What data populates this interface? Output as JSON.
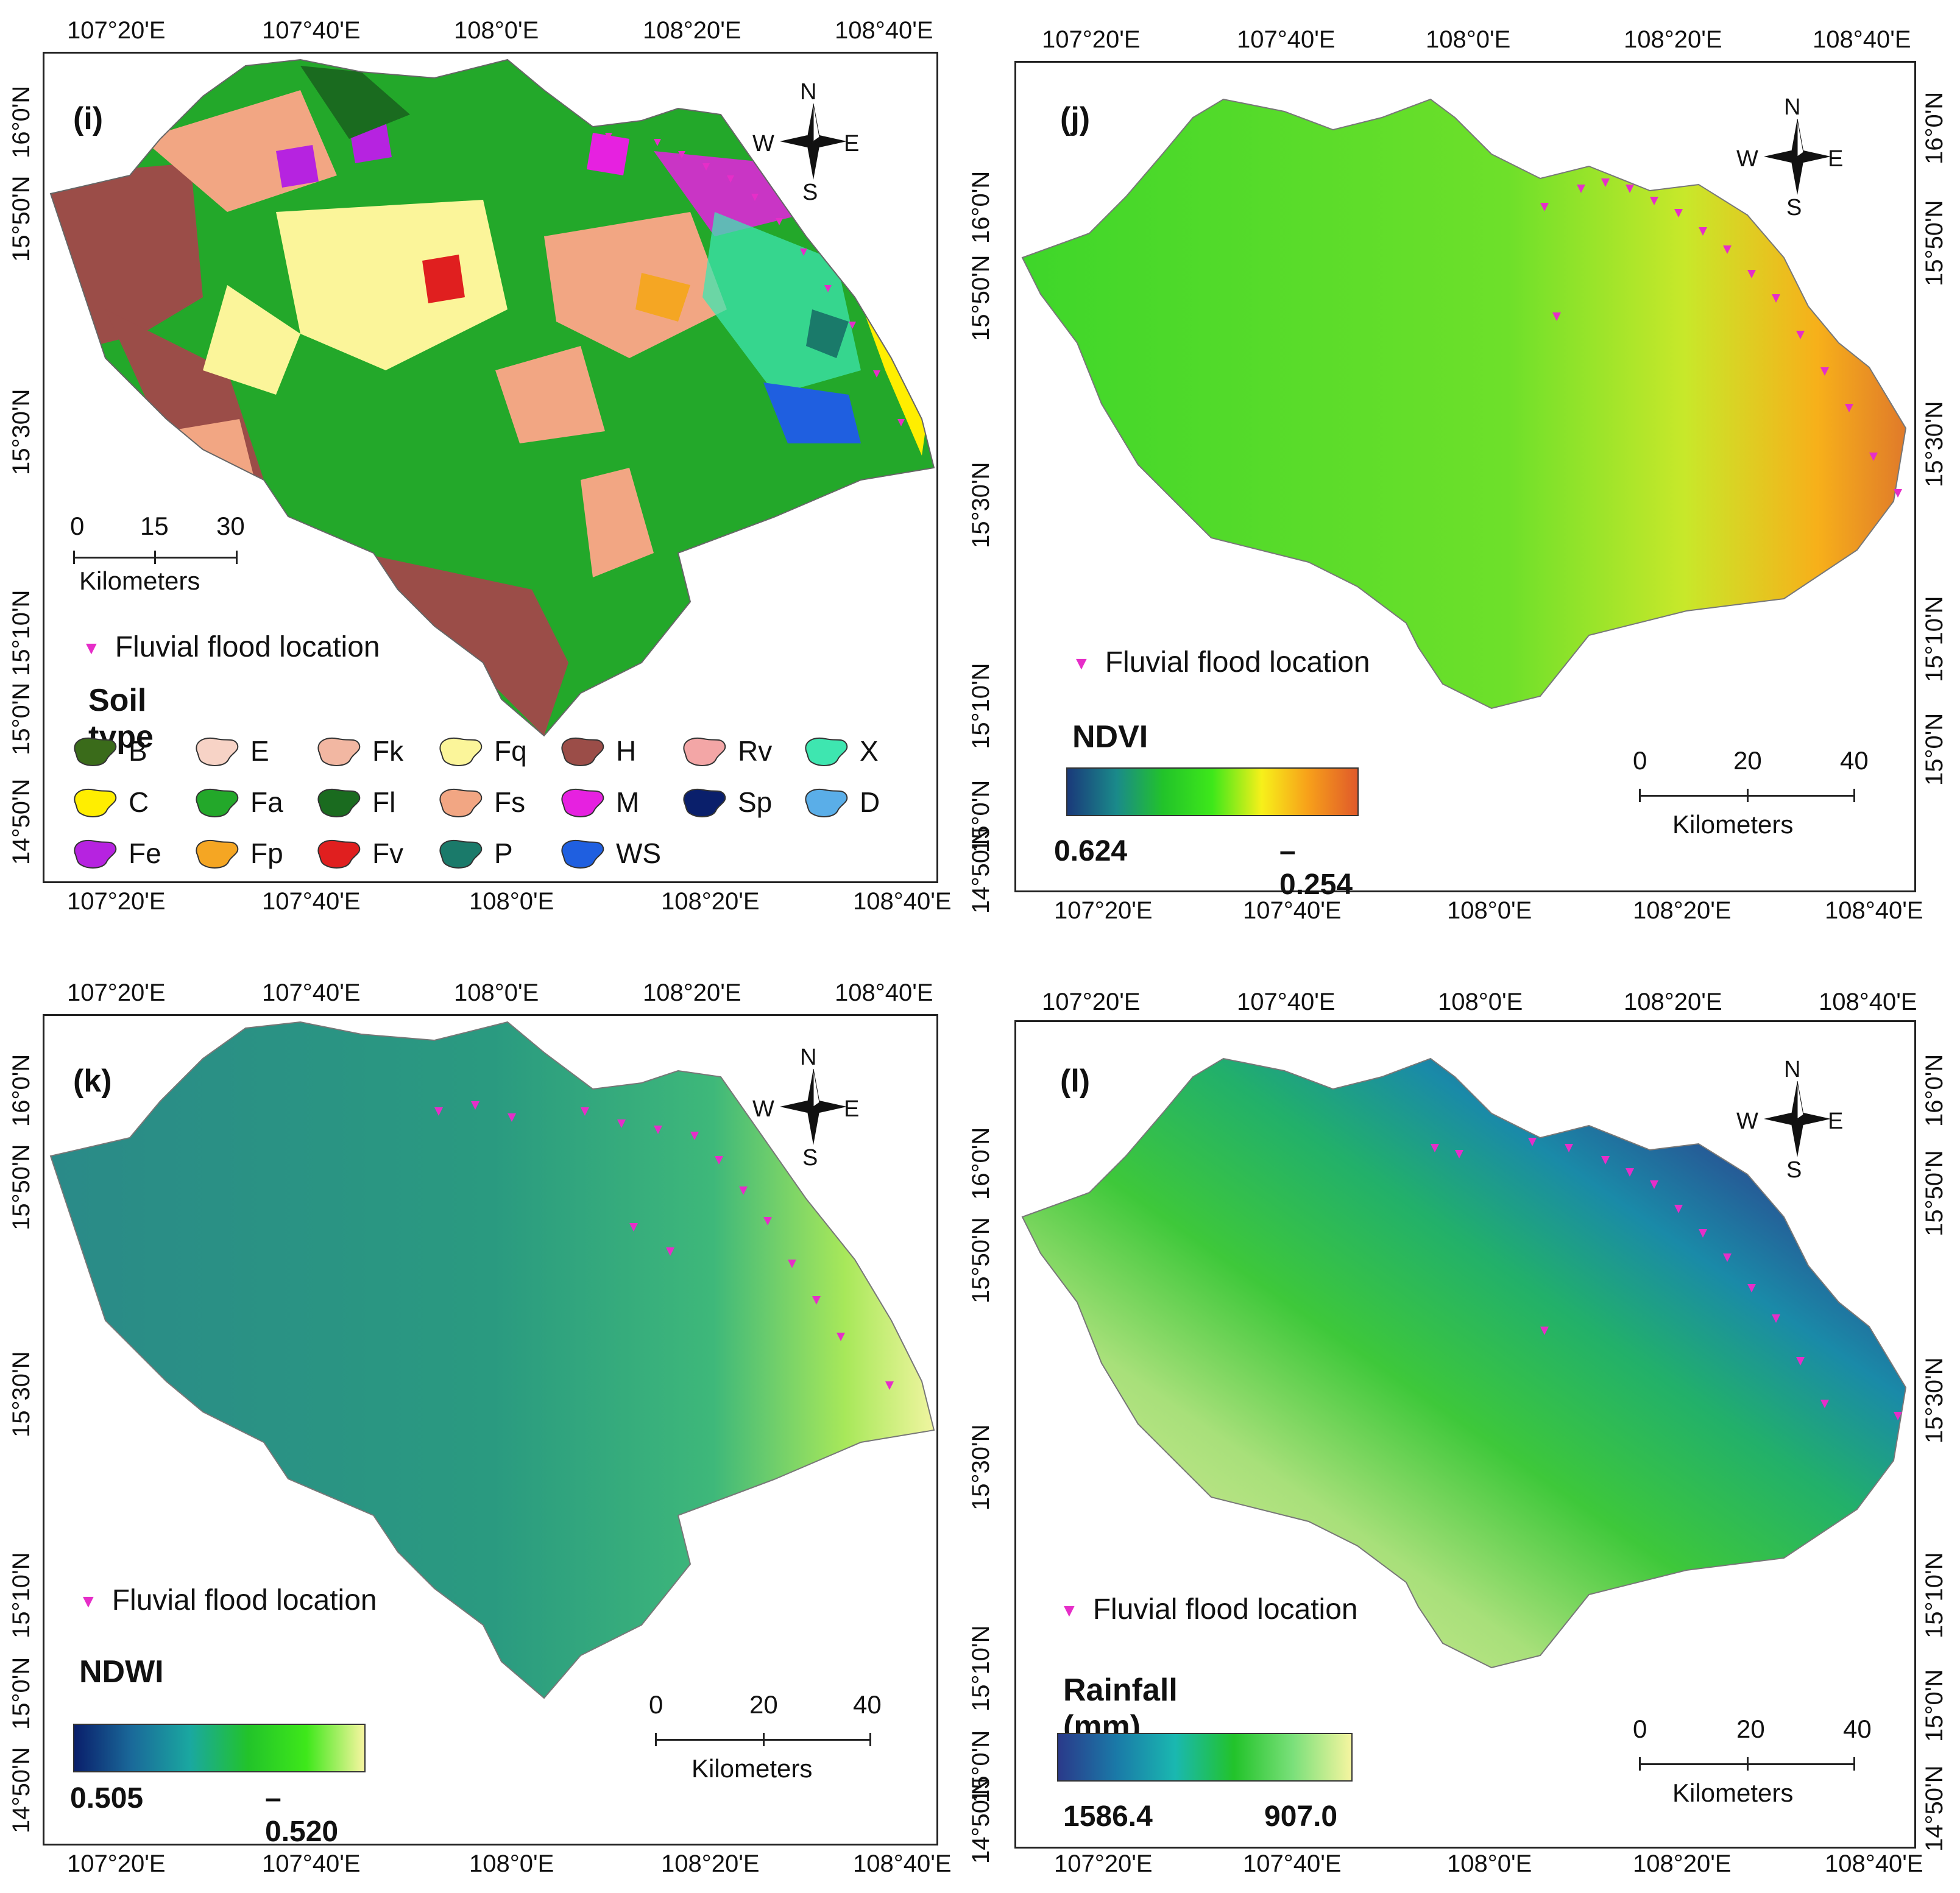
{
  "compass": {
    "n": "N",
    "s": "S",
    "e": "E",
    "w": "W"
  },
  "flood_legend": "Fluvial flood location",
  "scalebar_unit": "Kilometers",
  "panels": {
    "i": {
      "label": "(i)",
      "lon_ticks": [
        "107°20'E",
        "107°40'E",
        "108°0'E",
        "108°20'E",
        "108°40'E"
      ],
      "lat_ticks_left": [
        "16°0'N",
        "15°50'N",
        "15°30'N",
        "15°10'N",
        "15°0'N",
        "14°50'N"
      ],
      "lat_ticks_right": [],
      "scalebar": [
        "0",
        "15",
        "30"
      ],
      "legend_title": "Soil type",
      "soil_types": [
        {
          "code": "B",
          "color": "#3a6b1a"
        },
        {
          "code": "E",
          "color": "#f7d3c6"
        },
        {
          "code": "Fk",
          "color": "#f2b7a2"
        },
        {
          "code": "Fq",
          "color": "#fbf59a"
        },
        {
          "code": "H",
          "color": "#9b4d48"
        },
        {
          "code": "Rv",
          "color": "#f3a6a6"
        },
        {
          "code": "X",
          "color": "#3ee6b0"
        },
        {
          "code": "C",
          "color": "#ffee00"
        },
        {
          "code": "Fa",
          "color": "#23a82a"
        },
        {
          "code": "Fl",
          "color": "#1a6b1f"
        },
        {
          "code": "Fs",
          "color": "#f2a683"
        },
        {
          "code": "M",
          "color": "#e621e0"
        },
        {
          "code": "Sp",
          "color": "#0a1f6b"
        },
        {
          "code": "D",
          "color": "#5aaee8"
        },
        {
          "code": "Fe",
          "color": "#b623e0"
        },
        {
          "code": "Fp",
          "color": "#f5a623"
        },
        {
          "code": "Fv",
          "color": "#e01f1f"
        },
        {
          "code": "P",
          "color": "#1a7a6a"
        },
        {
          "code": "WS",
          "color": "#1f5fe0"
        }
      ]
    },
    "j": {
      "label": "(j)",
      "lon_ticks": [
        "107°20'E",
        "107°40'E",
        "108°0'E",
        "108°20'E",
        "108°40'E"
      ],
      "lat_ticks_left": [
        "16°0'N",
        "15°50'N",
        "15°30'N",
        "15°10'N",
        "15°0'N",
        "14°50'N"
      ],
      "lat_ticks_right": [
        "16°0'N",
        "15°50'N",
        "15°30'N",
        "15°10'N",
        "15°0'N"
      ],
      "scalebar": [
        "0",
        "20",
        "40"
      ],
      "legend_title": "NDVI",
      "ramp_high": "0.624",
      "ramp_low": "– 0.254",
      "ramp_colors": [
        "#1a3a7a",
        "#1a8a8a",
        "#22c32a",
        "#3ee81a",
        "#f7f01a",
        "#f7a01a",
        "#e05a2a"
      ]
    },
    "k": {
      "label": "(k)",
      "lon_ticks": [
        "107°20'E",
        "107°40'E",
        "108°0'E",
        "108°20'E",
        "108°40'E"
      ],
      "lat_ticks_left": [
        "16°0'N",
        "15°50'N",
        "15°30'N",
        "15°10'N",
        "15°0'N",
        "14°50'N"
      ],
      "lat_ticks_right": [],
      "scalebar": [
        "0",
        "20",
        "40"
      ],
      "legend_title": "NDWI",
      "ramp_high": "0.505",
      "ramp_low": "– 0.520",
      "ramp_colors": [
        "#0a1f6b",
        "#1a6a9a",
        "#1aa8a0",
        "#22c32a",
        "#3ee81a",
        "#f7f5a0"
      ]
    },
    "l": {
      "label": "(l)",
      "lon_ticks": [
        "107°20'E",
        "107°40'E",
        "108°0'E",
        "108°20'E",
        "108°40'E"
      ],
      "lat_ticks_left": [
        "16°0'N",
        "15°50'N",
        "15°30'N",
        "15°10'N",
        "15°0'N",
        "14°50'N"
      ],
      "lat_ticks_right": [
        "16°0'N",
        "15°50'N",
        "15°30'N",
        "15°10'N",
        "15°0'N",
        "14°50'N"
      ],
      "scalebar": [
        "0",
        "20",
        "40"
      ],
      "legend_title": "Rainfall (mm)",
      "ramp_high": "1586.4",
      "ramp_low": "907.0",
      "ramp_colors": [
        "#2a3a8a",
        "#1a7aa8",
        "#1ab8b0",
        "#22c32a",
        "#7ae07a",
        "#f5f5a0"
      ]
    }
  }
}
